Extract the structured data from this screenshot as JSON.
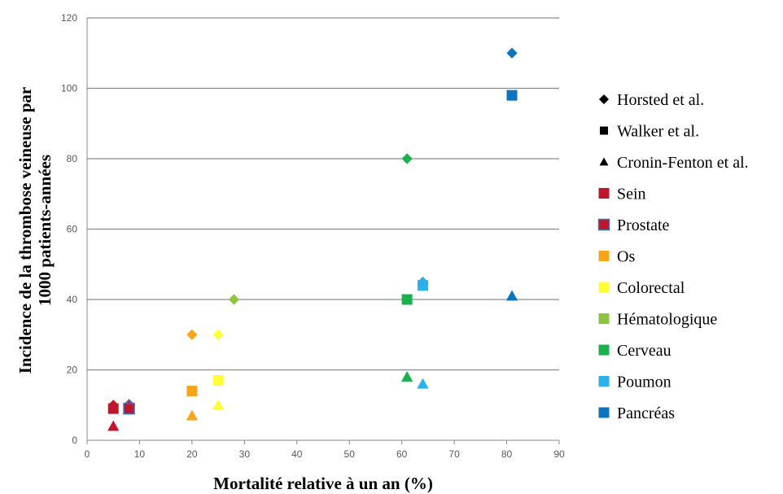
{
  "chart_data": {
    "type": "scatter",
    "title": "",
    "xlabel": "Mortalité relative à un an (%)",
    "ylabel_line1": "Incidence de la thrombose veineuse par",
    "ylabel_line2": "1000 patients-années",
    "xlim": [
      0,
      90
    ],
    "ylim": [
      0,
      120
    ],
    "x_ticks": [
      "0",
      "10",
      "20",
      "30",
      "40",
      "50",
      "60",
      "70",
      "80",
      "90"
    ],
    "y_ticks": [
      "0",
      "20",
      "40",
      "60",
      "80",
      "100",
      "120"
    ],
    "grid": "horizontal",
    "legend_position": "right",
    "studies": [
      {
        "name": "Horsted et al.",
        "marker": "diamond"
      },
      {
        "name": "Walker et al.",
        "marker": "square"
      },
      {
        "name": "Cronin-Fenton et al.",
        "marker": "triangle"
      }
    ],
    "cancers": [
      {
        "name": "Sein",
        "color": "#c0152a"
      },
      {
        "name": "Prostate",
        "color": "#c0152a",
        "edge": "#3a6fc4"
      },
      {
        "name": "Os",
        "color": "#f9a51b"
      },
      {
        "name": "Colorectal",
        "color": "#ffff33"
      },
      {
        "name": "Hématologique",
        "color": "#8cc63f"
      },
      {
        "name": "Cerveau",
        "color": "#1ab04d"
      },
      {
        "name": "Poumon",
        "color": "#2ab0ea"
      },
      {
        "name": "Pancréas",
        "color": "#0a74bd"
      }
    ],
    "points": [
      {
        "cancer": "Pancréas",
        "study": "Horsted et al.",
        "x": 81,
        "y": 110
      },
      {
        "cancer": "Pancréas",
        "study": "Walker et al.",
        "x": 81,
        "y": 98
      },
      {
        "cancer": "Pancréas",
        "study": "Cronin-Fenton et al.",
        "x": 81,
        "y": 41
      },
      {
        "cancer": "Cerveau",
        "study": "Horsted et al.",
        "x": 61,
        "y": 80
      },
      {
        "cancer": "Cerveau",
        "study": "Walker et al.",
        "x": 61,
        "y": 40
      },
      {
        "cancer": "Cerveau",
        "study": "Cronin-Fenton et al.",
        "x": 61,
        "y": 18
      },
      {
        "cancer": "Poumon",
        "study": "Horsted et al.",
        "x": 64,
        "y": 45
      },
      {
        "cancer": "Poumon",
        "study": "Walker et al.",
        "x": 64,
        "y": 44
      },
      {
        "cancer": "Poumon",
        "study": "Cronin-Fenton et al.",
        "x": 64,
        "y": 16
      },
      {
        "cancer": "Hématologique",
        "study": "Horsted et al.",
        "x": 28,
        "y": 40
      },
      {
        "cancer": "Os",
        "study": "Horsted et al.",
        "x": 20,
        "y": 30
      },
      {
        "cancer": "Os",
        "study": "Walker et al.",
        "x": 20,
        "y": 14
      },
      {
        "cancer": "Os",
        "study": "Cronin-Fenton et al.",
        "x": 20,
        "y": 7
      },
      {
        "cancer": "Colorectal",
        "study": "Horsted et al.",
        "x": 25,
        "y": 30
      },
      {
        "cancer": "Colorectal",
        "study": "Walker et al.",
        "x": 25,
        "y": 17
      },
      {
        "cancer": "Colorectal",
        "study": "Cronin-Fenton et al.",
        "x": 25,
        "y": 10
      },
      {
        "cancer": "Sein",
        "study": "Horsted et al.",
        "x": 5,
        "y": 10
      },
      {
        "cancer": "Sein",
        "study": "Walker et al.",
        "x": 5,
        "y": 9
      },
      {
        "cancer": "Sein",
        "study": "Cronin-Fenton et al.",
        "x": 5,
        "y": 4
      },
      {
        "cancer": "Prostate",
        "study": "Horsted et al.",
        "x": 8,
        "y": 10
      },
      {
        "cancer": "Prostate",
        "study": "Walker et al.",
        "x": 8,
        "y": 9
      }
    ]
  }
}
